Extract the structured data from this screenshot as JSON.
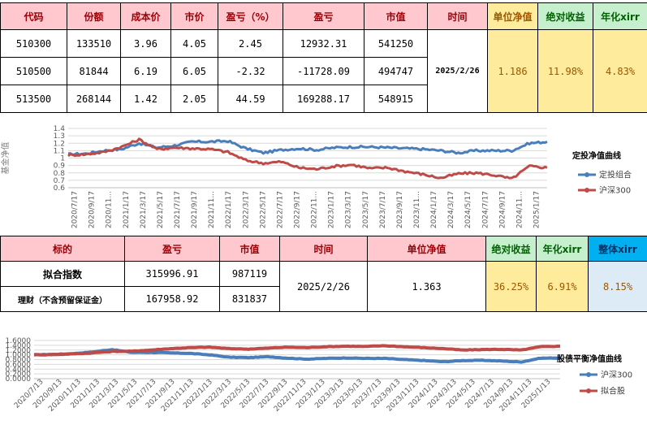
{
  "table1": {
    "headers": [
      "代码",
      "份额",
      "成本价",
      "市价",
      "盈亏（%）",
      "盈亏",
      "市值",
      "时间",
      "单位净值",
      "绝对收益",
      "年化xirr"
    ],
    "rows": [
      [
        "510300",
        "133510",
        "3.96",
        "4.05",
        "2.45",
        "12932.31",
        "541250"
      ],
      [
        "510500",
        "81844",
        "6.19",
        "6.05",
        "-2.32",
        "-11728.09",
        "494747"
      ],
      [
        "513500",
        "268144",
        "1.42",
        "2.05",
        "44.59",
        "169288.17",
        "548915"
      ]
    ],
    "date": "2025/2/26",
    "nav": "1.186",
    "abs_return": "11.98%",
    "xirr": "4.83%"
  },
  "table2": {
    "headers": [
      "标的",
      "盈亏",
      "市值",
      "时间",
      "单位净值",
      "绝对收益",
      "年化xirr",
      "整体xirr"
    ],
    "rows": [
      [
        "拟合指数",
        "315996.91",
        "987119"
      ],
      [
        "理财（不含预留保证金）",
        "167958.92",
        "831837"
      ]
    ],
    "date": "2025/2/26",
    "nav": "1.363",
    "abs_return": "36.25%",
    "xirr": "6.91%",
    "overall_xirr": "8.15%"
  },
  "chart_data": [
    {
      "type": "line",
      "title": "定投净值曲线",
      "ylabel": "基金净值",
      "ylim": [
        0.6,
        1.4
      ],
      "yticks": [
        "0.6",
        "0.7",
        "0.8",
        "0.9",
        "1",
        "1.1",
        "1.2",
        "1.3",
        "1.4"
      ],
      "categories": [
        "2020/7/17",
        "2020/9/17",
        "2020/11...",
        "2021/1/17",
        "2021/3/17",
        "2021/5/17",
        "2021/7/17",
        "2021/9/17",
        "2021/11...",
        "2022/1/17",
        "2022/3/17",
        "2022/5/17",
        "2022/7/17",
        "2022/9/17",
        "2022/11...",
        "2023/1/17",
        "2023/3/17",
        "2023/5/17",
        "2023/7/17",
        "2023/9/17",
        "2023/11...",
        "2024/1/17",
        "2024/3/17",
        "2024/5/17",
        "2024/7/17",
        "2024/9/17",
        "2024/11...",
        "2025/1/17"
      ],
      "legend_position": "right",
      "grid": true,
      "series": [
        {
          "name": "定投组合",
          "color": "#4a7ebb",
          "values": [
            1.05,
            1.06,
            1.1,
            1.12,
            1.2,
            1.14,
            1.17,
            1.22,
            1.22,
            1.23,
            1.13,
            1.07,
            1.11,
            1.13,
            1.11,
            1.14,
            1.15,
            1.15,
            1.14,
            1.13,
            1.12,
            1.1,
            1.07,
            1.1,
            1.1,
            1.1,
            1.2,
            1.22
          ]
        },
        {
          "name": "沪深300",
          "color": "#be4b48",
          "values": [
            1.04,
            1.05,
            1.08,
            1.15,
            1.25,
            1.12,
            1.14,
            1.13,
            1.12,
            1.08,
            0.97,
            0.93,
            0.95,
            0.87,
            0.85,
            0.89,
            0.91,
            0.86,
            0.87,
            0.82,
            0.78,
            0.73,
            0.79,
            0.8,
            0.77,
            0.72,
            0.89,
            0.87
          ]
        }
      ]
    },
    {
      "type": "line",
      "title": "股债平衡净值曲线",
      "ylim": [
        0.0,
        1.6
      ],
      "yticks": [
        "0.0000",
        "0.2000",
        "0.4000",
        "0.6000",
        "0.8000",
        "1.0000",
        "1.2000",
        "1.4000",
        "1.6000"
      ],
      "categories": [
        "2020/7/13",
        "2020/9/13",
        "2020/11/13",
        "2021/1/13",
        "2021/3/13",
        "2021/5/13",
        "2021/7/13",
        "2021/9/13",
        "2021/11/13",
        "2022/1/13",
        "2022/3/13",
        "2022/5/13",
        "2022/7/13",
        "2022/9/13",
        "2022/11/13",
        "2023/1/13",
        "2023/3/13",
        "2023/5/13",
        "2023/7/13",
        "2023/9/13",
        "2023/11/13",
        "2024/1/13",
        "2024/3/13",
        "2024/5/13",
        "2024/7/13",
        "2024/9/13",
        "2024/11/13",
        "2025/1/13"
      ],
      "legend_position": "right",
      "grid": true,
      "series": [
        {
          "name": "沪深300",
          "color": "#4a7ebb",
          "values": [
            1.0,
            1.02,
            1.05,
            1.12,
            1.22,
            1.1,
            1.1,
            1.08,
            1.06,
            1.0,
            0.9,
            0.88,
            0.92,
            0.86,
            0.82,
            0.85,
            0.87,
            0.85,
            0.85,
            0.8,
            0.76,
            0.71,
            0.76,
            0.77,
            0.74,
            0.7,
            0.86,
            0.87
          ]
        },
        {
          "name": "拟合股",
          "color": "#be4b48",
          "values": [
            1.0,
            1.01,
            1.04,
            1.08,
            1.14,
            1.15,
            1.2,
            1.26,
            1.3,
            1.32,
            1.26,
            1.24,
            1.28,
            1.32,
            1.3,
            1.34,
            1.36,
            1.35,
            1.38,
            1.34,
            1.3,
            1.26,
            1.2,
            1.22,
            1.23,
            1.2,
            1.34,
            1.36
          ]
        }
      ]
    }
  ]
}
